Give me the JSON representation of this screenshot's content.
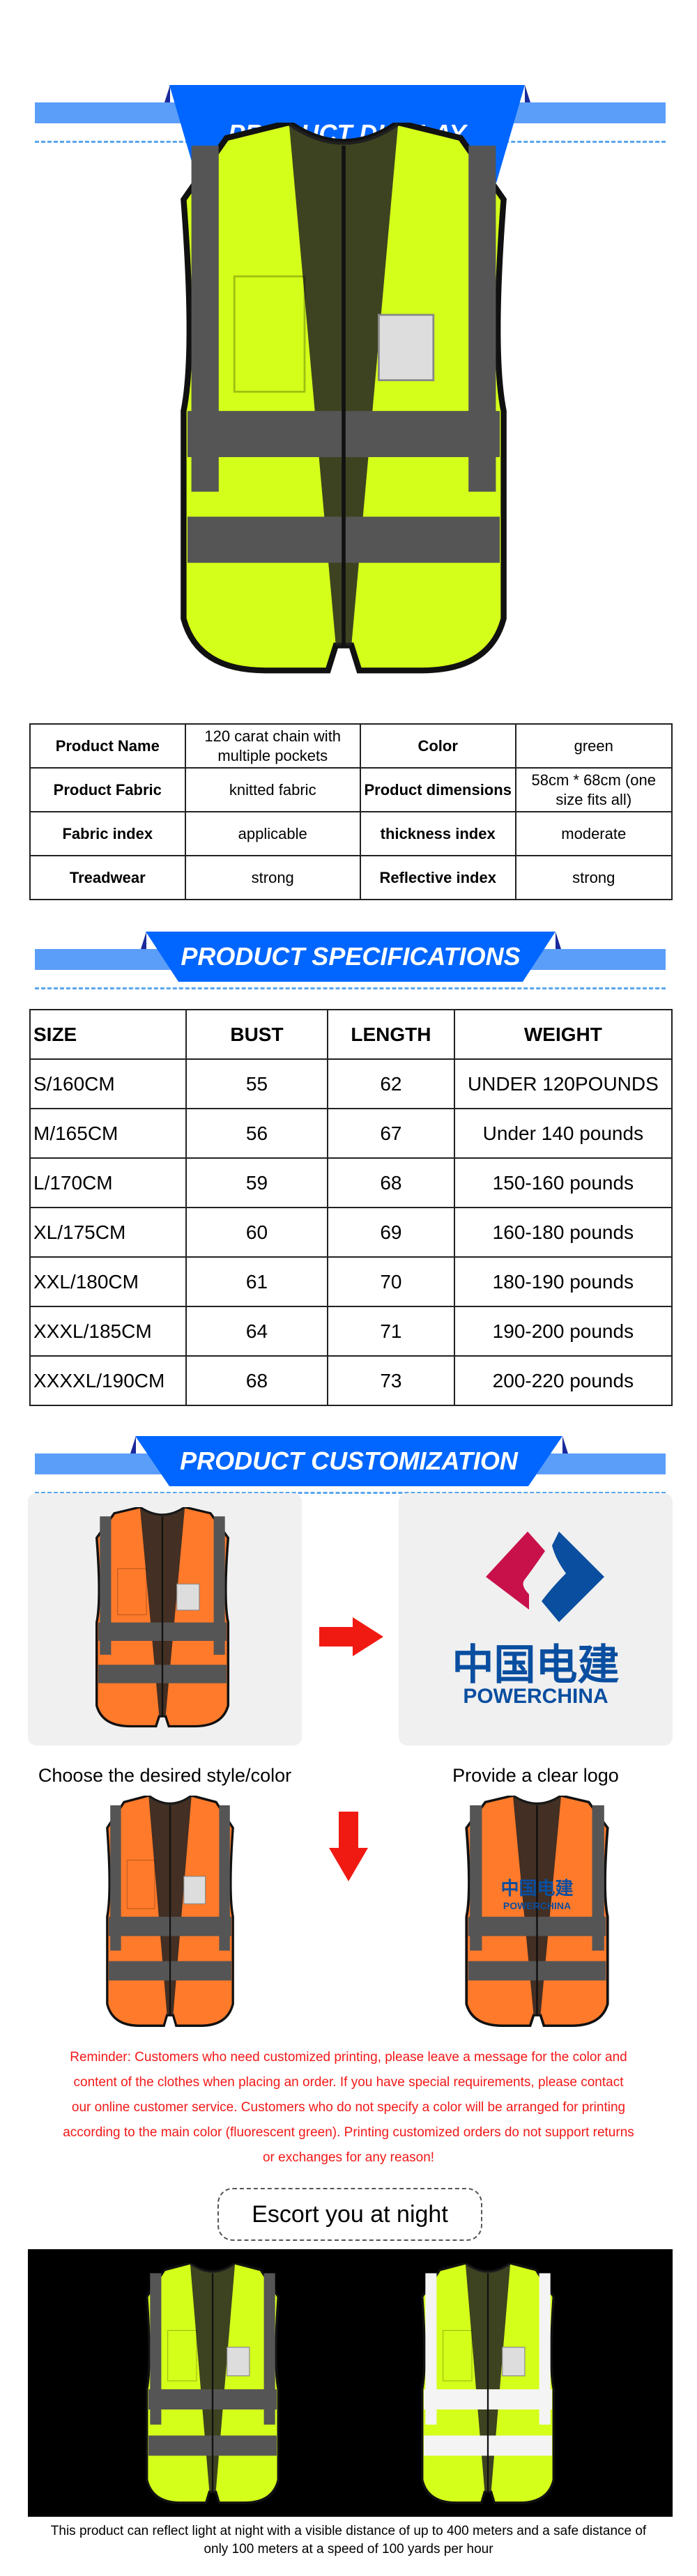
{
  "sections": {
    "display": "PRODUCT DISPLAY",
    "specs": "PRODUCT SPECIFICATIONS",
    "custom": "PRODUCT CUSTOMIZATION"
  },
  "colors": {
    "banner": "#0066ff",
    "bar": "#5b9ef9",
    "vest_green": "#d4ff1a",
    "vest_orange": "#ff7a2a",
    "reflective": "#555555",
    "reminder": "#f31818",
    "arrow": "#f01a12",
    "logo_blue": "#0a4ea0",
    "logo_red": "#c8104a"
  },
  "product_table": [
    [
      {
        "t": "Product Name",
        "b": true
      },
      {
        "t": "120 carat chain with multiple pockets"
      },
      {
        "t": "Color",
        "b": true
      },
      {
        "t": "green"
      }
    ],
    [
      {
        "t": "Product Fabric",
        "b": true
      },
      {
        "t": "knitted fabric"
      },
      {
        "t": "Product dimensions",
        "b": true
      },
      {
        "t": "58cm * 68cm (one size fits all)"
      }
    ],
    [
      {
        "t": "Fabric index",
        "b": true
      },
      {
        "t": "applicable"
      },
      {
        "t": "thickness index",
        "b": true
      },
      {
        "t": "moderate"
      }
    ],
    [
      {
        "t": "Treadwear",
        "b": true
      },
      {
        "t": "strong"
      },
      {
        "t": "Reflective index",
        "b": true
      },
      {
        "t": "strong"
      }
    ]
  ],
  "spec_table": {
    "headers": [
      "SIZE",
      "BUST",
      "LENGTH",
      "WEIGHT"
    ],
    "rows": [
      [
        "S/160CM",
        "55",
        "62",
        "UNDER 120POUNDS"
      ],
      [
        "M/165CM",
        "56",
        "67",
        "Under 140 pounds"
      ],
      [
        "L/170CM",
        "59",
        "68",
        "150-160 pounds"
      ],
      [
        "XL/175CM",
        "60",
        "69",
        "160-180 pounds"
      ],
      [
        "XXL/180CM",
        "61",
        "70",
        "180-190 pounds"
      ],
      [
        "XXXL/185CM",
        "64",
        "71",
        "190-200 pounds"
      ],
      [
        "XXXXL/190CM",
        "68",
        "73",
        "200-220 pounds"
      ]
    ]
  },
  "customization": {
    "caption_left": "Choose the desired style/color",
    "caption_right": "Provide a clear logo",
    "logo_cn": "中国电建",
    "logo_en": "POWERCHINA",
    "reminder": "Reminder: Customers who need customized printing, please leave a message for the color and content of the clothes when placing an order. If you have special requirements, please contact our online customer service. Customers who do not specify a color will be arranged for printing according to the main color (fluorescent green). Printing customized orders do not support returns or exchanges for any reason!"
  },
  "night": {
    "button": "Escort you at night",
    "description": "This product can reflect light at night with a visible distance of up to 400 meters and a safe distance of only 100 meters at a speed of 100 yards per hour"
  }
}
